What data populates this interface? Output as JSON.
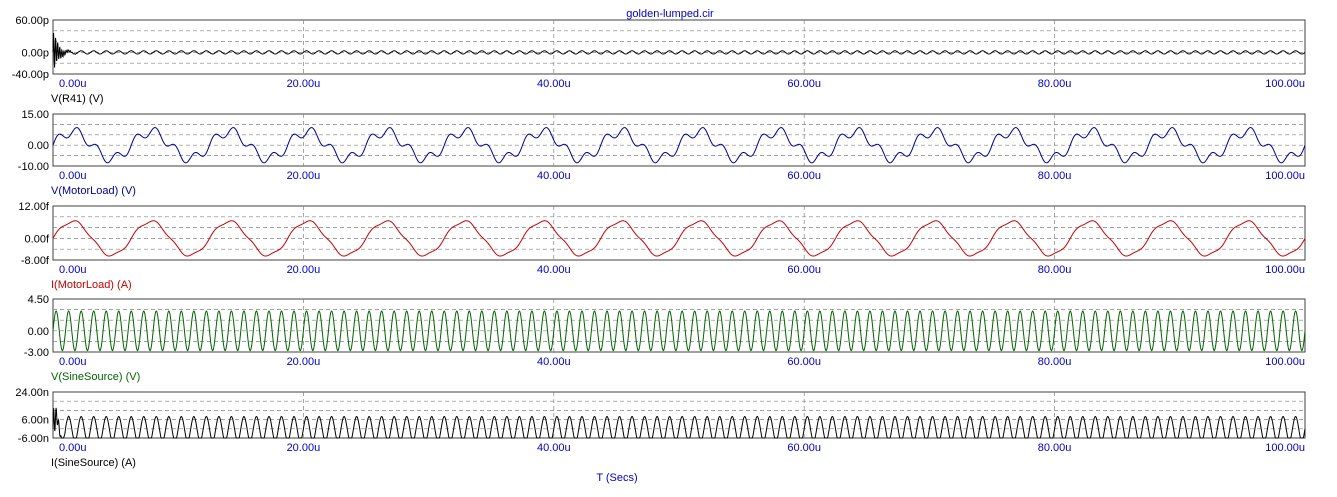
{
  "title": "golden-lumped.cir",
  "xlabel": "T (Secs)",
  "colors": {
    "title": "#0000c8",
    "tick_x": "#0000c8",
    "grid": "#808080",
    "frame": "#404040",
    "background": "#ffffff"
  },
  "chart_data": [
    {
      "type": "line",
      "signal": "V(R41) (V)",
      "color": "#000000",
      "waveform": "ringing-burst-then-small-oscillation",
      "x_unit": "us",
      "xlim": [
        0,
        100
      ],
      "x_ticks": [
        "0.00u",
        "20.00u",
        "40.00u",
        "60.00u",
        "80.00u",
        "100.00u"
      ],
      "ylim": [
        -40,
        60
      ],
      "y_ticks": [
        "60.00p",
        "0.00p",
        "-40.00p"
      ],
      "y_tick_values": [
        60,
        0,
        -40
      ],
      "approx_params": {
        "frequency_MHz": 1.0,
        "steady_amplitude": 3,
        "initial_spike": [
          45,
          -38
        ],
        "spike_decay_us": 0.4
      },
      "grid": true
    },
    {
      "type": "line",
      "signal": "V(MotorLoad) (V)",
      "color": "#000096",
      "waveform": "sine-fundamental-plus-harmonic",
      "x_unit": "us",
      "xlim": [
        0,
        100
      ],
      "x_ticks": [
        "0.00u",
        "20.00u",
        "40.00u",
        "60.00u",
        "80.00u",
        "100.00u"
      ],
      "ylim": [
        -10,
        15
      ],
      "y_ticks": [
        "15.00",
        "0.00",
        "-10.00"
      ],
      "y_tick_values": [
        15,
        0,
        -10
      ],
      "approx_params": {
        "fundamental_period_us": 6.25,
        "fundamental_amplitude": 6.5,
        "harmonic_multiple": 4,
        "harmonic_amplitude": 2.4
      },
      "grid": true
    },
    {
      "type": "line",
      "signal": "I(MotorLoad) (A)",
      "color": "#c80000",
      "waveform": "sine-with-small-ripple",
      "x_unit": "us",
      "xlim": [
        0,
        100
      ],
      "x_ticks": [
        "0.00u",
        "20.00u",
        "40.00u",
        "60.00u",
        "80.00u",
        "100.00u"
      ],
      "ylim": [
        -8,
        12
      ],
      "y_ticks": [
        "12.00f",
        "0.00f",
        "-8.00f"
      ],
      "y_tick_values": [
        12,
        0,
        -8
      ],
      "approx_params": {
        "fundamental_period_us": 6.25,
        "fundamental_amplitude": 6.3,
        "harmonic_multiple": 4,
        "harmonic_amplitude": 0.5
      },
      "grid": true
    },
    {
      "type": "line",
      "signal": "V(SineSource) (V)",
      "color": "#006400",
      "waveform": "sine",
      "x_unit": "us",
      "xlim": [
        0,
        100
      ],
      "x_ticks": [
        "0.00u",
        "20.00u",
        "40.00u",
        "60.00u",
        "80.00u",
        "100.00u"
      ],
      "ylim": [
        -3,
        4.5
      ],
      "y_ticks": [
        "4.50",
        "0.00",
        "-3.00"
      ],
      "y_tick_values": [
        4.5,
        0,
        -3
      ],
      "approx_params": {
        "period_us": 1.0,
        "amplitude": 2.8
      },
      "grid": true
    },
    {
      "type": "line",
      "signal": "I(SineSource) (A)",
      "color": "#000000",
      "waveform": "initial-spike-then-sine",
      "x_unit": "us",
      "xlim": [
        0,
        100
      ],
      "x_ticks": [
        "0.00u",
        "20.00u",
        "40.00u",
        "60.00u",
        "80.00u",
        "100.00u"
      ],
      "ylim": [
        -6,
        24
      ],
      "y_ticks": [
        "24.00n",
        "6.00n",
        "-6.00n"
      ],
      "y_tick_values": [
        24,
        6,
        -6
      ],
      "approx_params": {
        "period_us": 1.0,
        "amplitude": 8,
        "initial_spike": [
          20,
          -6
        ],
        "spike_decay_us": 0.3
      },
      "grid": true
    }
  ]
}
